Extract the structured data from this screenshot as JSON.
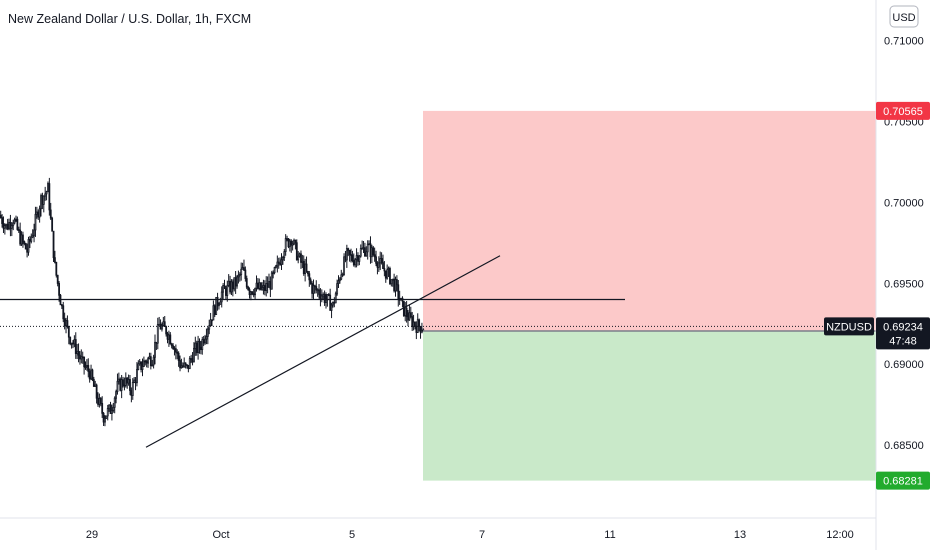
{
  "header": {
    "title": "New Zealand Dollar / U.S. Dollar, 1h, FXCM",
    "currency_button": "USD"
  },
  "chart_data": {
    "type": "candlestick",
    "title": "New Zealand Dollar / U.S. Dollar, 1h, FXCM",
    "ylim": [
      0.6805,
      0.7125
    ],
    "y_ticks": [
      "0.71000",
      "0.70500",
      "0.70000",
      "0.69500",
      "0.69000",
      "0.68500"
    ],
    "y_tick_values": [
      0.71,
      0.705,
      0.7,
      0.695,
      0.69,
      0.685
    ],
    "x_ticks": [
      "29",
      "Oct",
      "5",
      "7",
      "11",
      "13",
      "12:00"
    ],
    "symbol_label": "NZDUSD",
    "last_price": "0.69234",
    "countdown": "47:48",
    "price_tags": [
      {
        "label": "0.70565",
        "value": 0.70565,
        "color": "#f23645"
      },
      {
        "label": "0.69205",
        "value": 0.69205,
        "color": "#4a4e59"
      },
      {
        "label": "0.68281",
        "value": 0.68281,
        "color": "#22ab2d"
      }
    ],
    "position": {
      "entry": 0.69205,
      "stop": 0.70565,
      "target": 0.68281,
      "loss_zone_color": "#fcc9c9",
      "profit_zone_color": "#c9e9c9"
    },
    "horizontal_level": 0.694,
    "trendline": {
      "from": [
        0.68487
      ],
      "to": [
        0.6967
      ]
    },
    "price_path": [
      0.6992,
      0.6985,
      0.699,
      0.6978,
      0.697,
      0.6985,
      0.7002,
      0.7008,
      0.696,
      0.6935,
      0.6918,
      0.691,
      0.69,
      0.6895,
      0.688,
      0.6868,
      0.6872,
      0.6886,
      0.689,
      0.6884,
      0.6897,
      0.6902,
      0.6904,
      0.6924,
      0.6921,
      0.6913,
      0.69,
      0.6897,
      0.6908,
      0.6912,
      0.6924,
      0.6935,
      0.6944,
      0.6947,
      0.695,
      0.6958,
      0.6946,
      0.6947,
      0.6946,
      0.695,
      0.696,
      0.6973,
      0.6978,
      0.6966,
      0.6958,
      0.6947,
      0.6945,
      0.694,
      0.6936,
      0.6955,
      0.6967,
      0.6965,
      0.697,
      0.6972,
      0.6967,
      0.696,
      0.6955,
      0.6948,
      0.6935,
      0.6928,
      0.6924,
      0.6923
    ],
    "colors": {
      "candle": "#131722",
      "level_line": "#131722",
      "price_line": "#131722"
    }
  }
}
